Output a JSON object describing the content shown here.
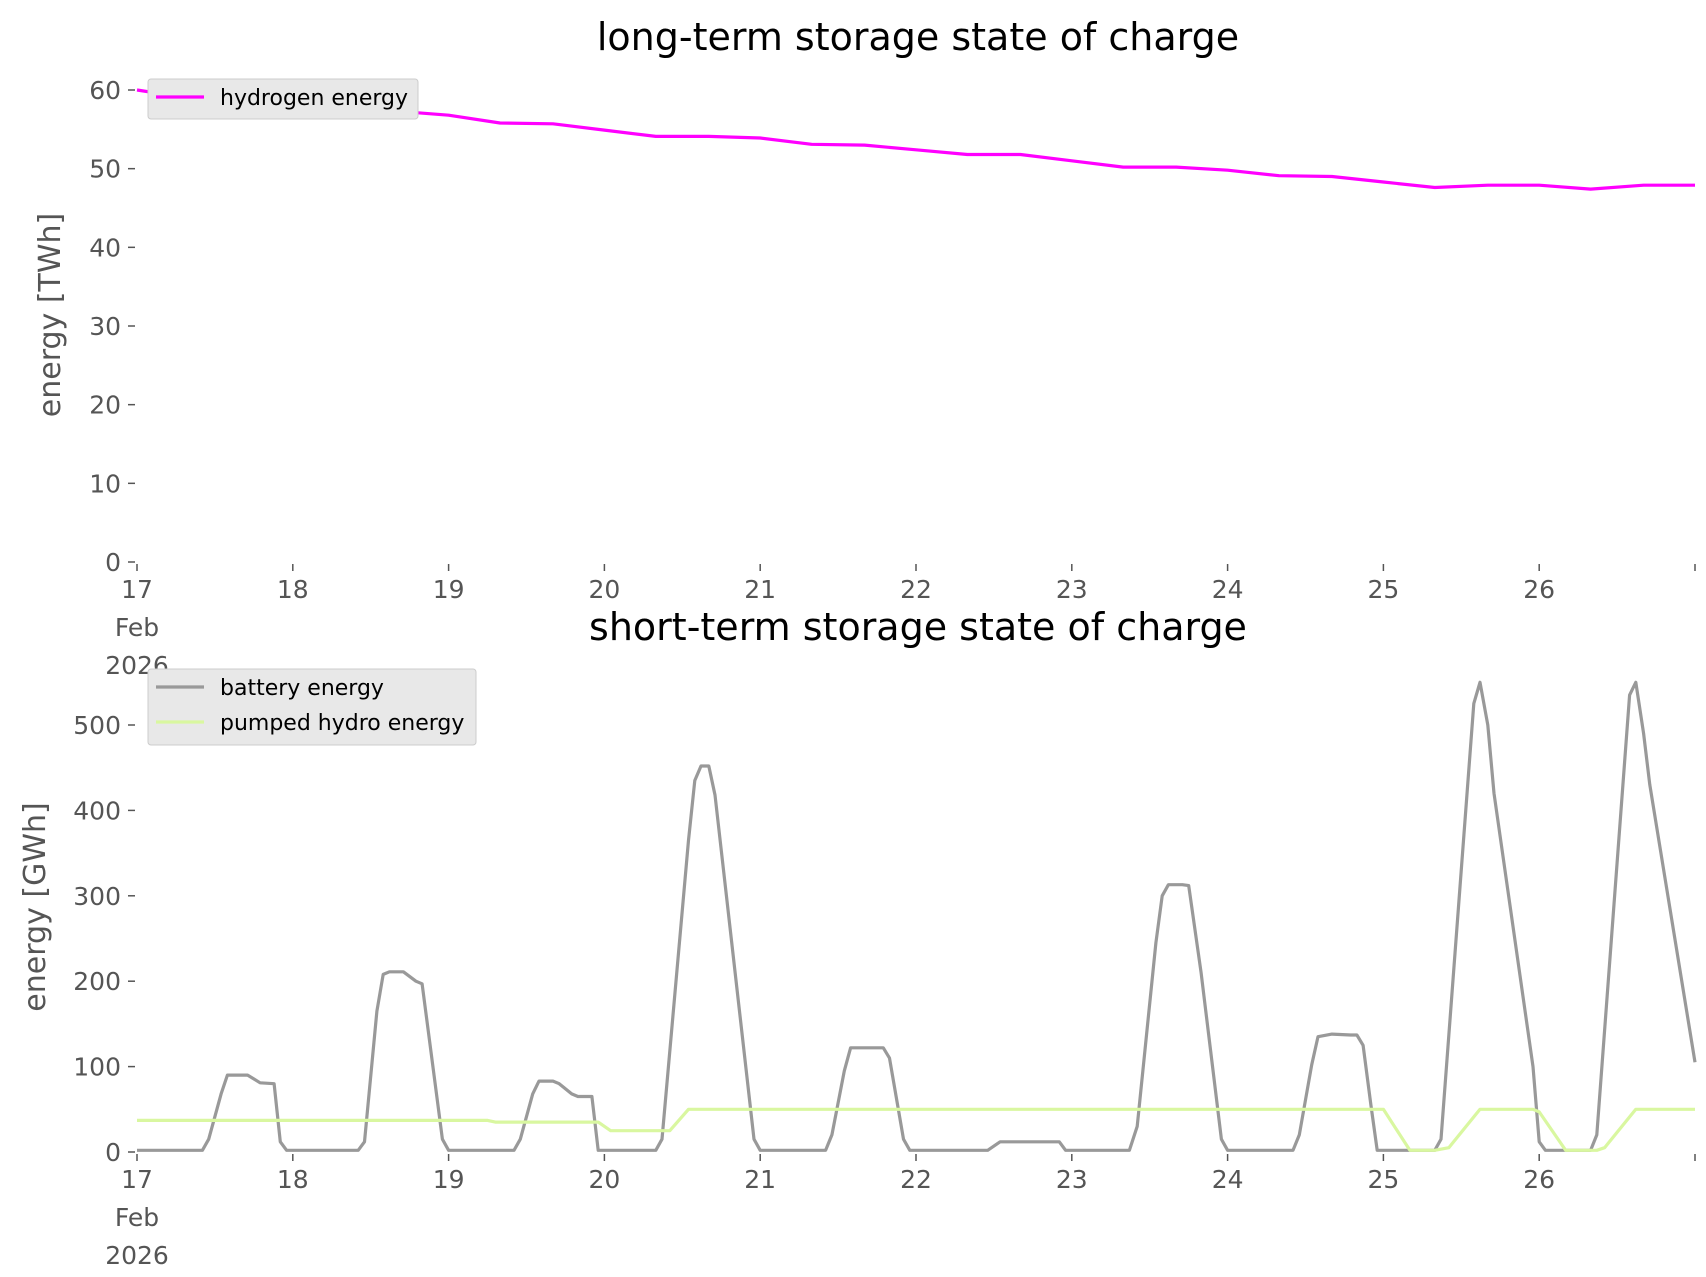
{
  "chart_data": [
    {
      "type": "line",
      "title": "long-term storage state of charge",
      "ylabel": "energy [TWh]",
      "xlabel": "",
      "x_unit": "days from 17 Feb 2026",
      "xlim": [
        17,
        27
      ],
      "ylim": [
        0,
        62
      ],
      "yticks": [
        0,
        10,
        20,
        30,
        40,
        50,
        60
      ],
      "xtick_labels": [
        "17\nFeb\n2026",
        "18",
        "19",
        "20",
        "21",
        "22",
        "23",
        "24",
        "25",
        "26"
      ],
      "xtick_values": [
        17,
        18,
        19,
        20,
        21,
        22,
        23,
        24,
        25,
        26
      ],
      "grid": false,
      "legend": "upper left",
      "series": [
        {
          "name": "hydrogen energy",
          "color": "#ff00ff",
          "x": [
            17.0,
            17.33,
            17.67,
            18.0,
            18.33,
            18.67,
            19.0,
            19.33,
            19.67,
            20.0,
            20.33,
            20.67,
            21.0,
            21.33,
            21.67,
            22.0,
            22.33,
            22.67,
            23.0,
            23.33,
            23.67,
            24.0,
            24.33,
            24.67,
            25.0,
            25.33,
            25.67,
            26.0,
            26.33,
            26.67,
            27.0
          ],
          "y": [
            60.0,
            59.0,
            58.8,
            58.0,
            57.2,
            57.3,
            56.8,
            55.8,
            55.7,
            54.9,
            54.1,
            54.1,
            53.9,
            53.1,
            53.0,
            52.4,
            51.8,
            51.8,
            51.0,
            50.2,
            50.2,
            49.8,
            49.1,
            49.0,
            48.3,
            47.6,
            47.9,
            47.9,
            47.4,
            47.9,
            47.9
          ]
        }
      ]
    },
    {
      "type": "line",
      "title": "short-term storage state of charge",
      "ylabel": "energy [GWh]",
      "xlabel": "",
      "x_unit": "days from 17 Feb 2026",
      "xlim": [
        17,
        27
      ],
      "ylim": [
        0,
        560
      ],
      "yticks": [
        0,
        100,
        200,
        300,
        400,
        500
      ],
      "xtick_labels": [
        "17\nFeb\n2026",
        "18",
        "19",
        "20",
        "21",
        "22",
        "23",
        "24",
        "25",
        "26"
      ],
      "xtick_values": [
        17,
        18,
        19,
        20,
        21,
        22,
        23,
        24,
        25,
        26
      ],
      "grid": false,
      "legend": "upper left",
      "series": [
        {
          "name": "battery energy",
          "color": "#999999",
          "x": [
            17.0,
            17.42,
            17.46,
            17.54,
            17.58,
            17.71,
            17.79,
            17.88,
            17.92,
            17.96,
            18.0,
            18.42,
            18.46,
            18.54,
            18.58,
            18.62,
            18.71,
            18.79,
            18.83,
            18.96,
            19.0,
            19.42,
            19.46,
            19.54,
            19.58,
            19.67,
            19.71,
            19.79,
            19.83,
            19.92,
            19.96,
            20.33,
            20.37,
            20.54,
            20.58,
            20.62,
            20.67,
            20.71,
            20.96,
            21.0,
            21.42,
            21.46,
            21.54,
            21.58,
            21.67,
            21.79,
            21.83,
            21.92,
            21.96,
            22.46,
            22.54,
            22.92,
            22.96,
            23.37,
            23.42,
            23.54,
            23.58,
            23.62,
            23.71,
            23.75,
            23.83,
            23.96,
            24.0,
            24.42,
            24.46,
            24.54,
            24.58,
            24.67,
            24.79,
            24.83,
            24.87,
            24.92,
            24.96,
            25.33,
            25.37,
            25.58,
            25.62,
            25.67,
            25.71,
            25.96,
            26.0,
            26.04,
            26.33,
            26.37,
            26.58,
            26.62,
            26.67,
            26.71,
            27.0
          ],
          "y": [
            2,
            2,
            15,
            68,
            90,
            90,
            81,
            80,
            12,
            2,
            2,
            2,
            12,
            165,
            208,
            211,
            211,
            200,
            197,
            15,
            2,
            2,
            15,
            68,
            83,
            83,
            80,
            68,
            65,
            65,
            2,
            2,
            15,
            365,
            435,
            452,
            452,
            418,
            15,
            2,
            2,
            20,
            95,
            122,
            122,
            122,
            110,
            15,
            2,
            2,
            12,
            12,
            2,
            2,
            30,
            245,
            300,
            313,
            313,
            312,
            210,
            15,
            2,
            2,
            20,
            102,
            135,
            138,
            137,
            137,
            125,
            55,
            2,
            2,
            15,
            525,
            550,
            500,
            420,
            100,
            12,
            2,
            2,
            20,
            535,
            550,
            490,
            430,
            105
          ]
        },
        {
          "name": "pumped hydro energy",
          "color": "#d9f7a0",
          "x": [
            17.0,
            19.25,
            19.3,
            19.96,
            20.04,
            20.42,
            20.54,
            20.58,
            24.92,
            25.0,
            25.17,
            25.33,
            25.42,
            25.62,
            25.96,
            26.0,
            26.17,
            26.37,
            26.42,
            26.62,
            27.0
          ],
          "y": [
            37,
            37,
            35,
            35,
            25,
            25,
            50,
            50,
            50,
            50,
            2,
            2,
            5,
            50,
            50,
            47,
            2,
            2,
            5,
            50,
            50
          ]
        }
      ]
    }
  ]
}
